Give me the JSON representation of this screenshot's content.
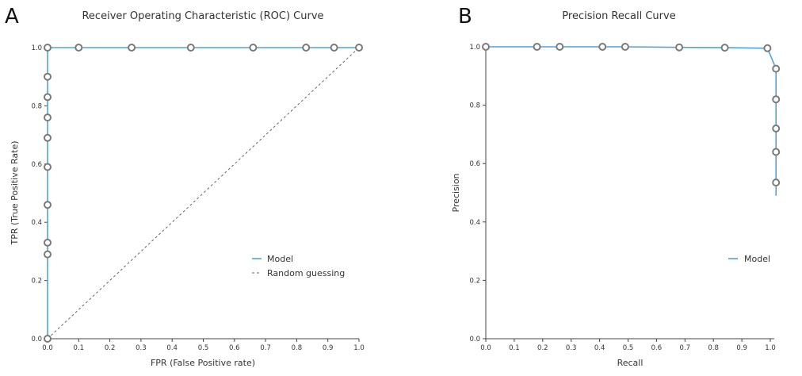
{
  "chart_data": [
    {
      "panel": "A",
      "type": "line",
      "title": "Receiver Operating Characteristic (ROC) Curve",
      "xlabel": "FPR (False Positive rate)",
      "ylabel": "TPR (True Positive Rate)",
      "xlim": [
        0,
        1
      ],
      "ylim": [
        0,
        1
      ],
      "xticks": [
        "0.0",
        "0.1",
        "0.2",
        "0.3",
        "0.4",
        "0.5",
        "0.6",
        "0.7",
        "0.8",
        "0.9",
        "1.0"
      ],
      "yticks": [
        "0.0",
        "0.2",
        "0.4",
        "0.6",
        "0.8",
        "1.0"
      ],
      "grid": false,
      "legend": "center-right",
      "series": [
        {
          "name": "Model",
          "color": "#4ea3dd",
          "style": "solid",
          "markers": true,
          "points": [
            [
              0.0,
              0.0
            ],
            [
              0.0,
              0.29
            ],
            [
              0.0,
              0.33
            ],
            [
              0.0,
              0.46
            ],
            [
              0.0,
              0.59
            ],
            [
              0.0,
              0.69
            ],
            [
              0.0,
              0.76
            ],
            [
              0.0,
              0.83
            ],
            [
              0.0,
              0.9
            ],
            [
              0.0,
              1.0
            ],
            [
              0.1,
              1.0
            ],
            [
              0.27,
              1.0
            ],
            [
              0.46,
              1.0
            ],
            [
              0.66,
              1.0
            ],
            [
              0.83,
              1.0
            ],
            [
              0.92,
              1.0
            ],
            [
              1.0,
              1.0
            ]
          ]
        },
        {
          "name": "Random guessing",
          "color": "#666666",
          "style": "dashed",
          "markers": false,
          "points": [
            [
              0.0,
              0.0
            ],
            [
              1.0,
              1.0
            ]
          ]
        }
      ]
    },
    {
      "panel": "B",
      "type": "line",
      "title": "Precision Recall Curve",
      "xlabel": "Recall",
      "ylabel": "Precision",
      "xlim": [
        0,
        1
      ],
      "ylim": [
        0,
        1
      ],
      "xticks": [
        "0.0",
        "0.1",
        "0.2",
        "0.3",
        "0.4",
        "0.5",
        "0.6",
        "0.7",
        "0.8",
        "0.9",
        "1.0"
      ],
      "yticks": [
        "0.0",
        "0.2",
        "0.4",
        "0.6",
        "0.8",
        "1.0"
      ],
      "grid": false,
      "legend": "center-right",
      "series": [
        {
          "name": "Model",
          "color": "#4ea3dd",
          "style": "solid",
          "markers": true,
          "points": [
            [
              0.0,
              1.0
            ],
            [
              0.18,
              1.0
            ],
            [
              0.26,
              1.0
            ],
            [
              0.41,
              1.0
            ],
            [
              0.49,
              1.0
            ],
            [
              0.68,
              0.998
            ],
            [
              0.84,
              0.997
            ],
            [
              0.99,
              0.995
            ],
            [
              1.02,
              0.925
            ],
            [
              1.02,
              0.82
            ],
            [
              1.02,
              0.72
            ],
            [
              1.02,
              0.64
            ],
            [
              1.02,
              0.535
            ]
          ],
          "line_tail": [
            [
              1.02,
              0.49
            ]
          ]
        }
      ]
    }
  ]
}
